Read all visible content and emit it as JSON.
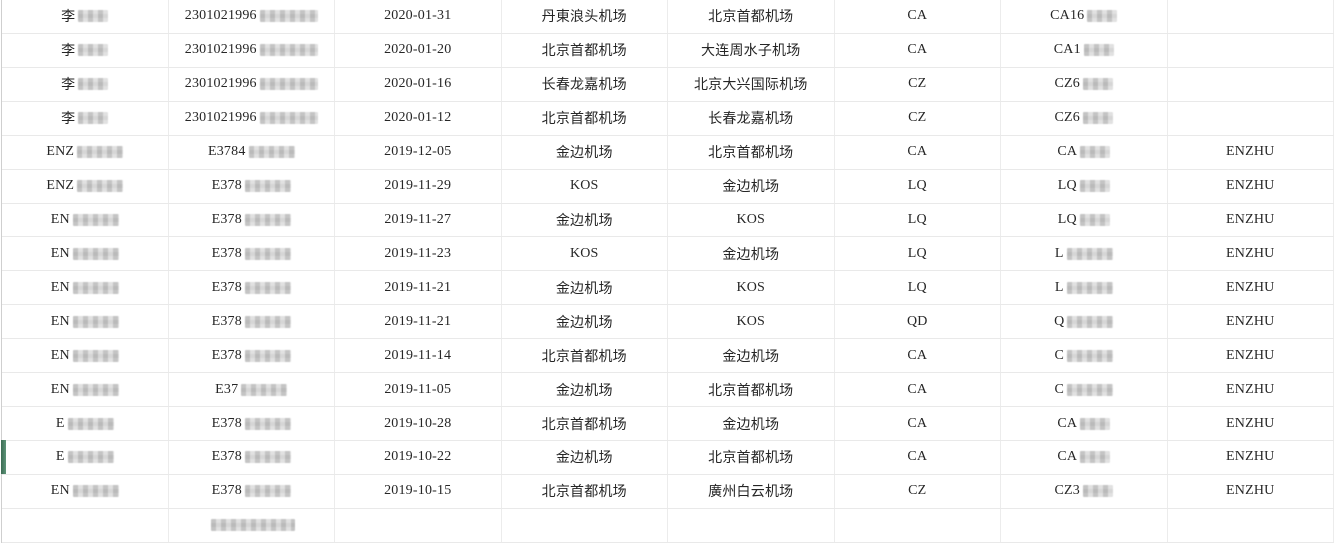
{
  "colors": {
    "row_selection_marker_green": "#4e8a6e",
    "grid_border": "#e9e9e9",
    "text": "#262626",
    "redaction_gray": "#c9c9c9"
  },
  "table": {
    "column_keys": [
      "name",
      "id_number",
      "date",
      "departure",
      "arrival",
      "airline",
      "flight",
      "pinyin"
    ],
    "rows": [
      {
        "name": {
          "text": "李",
          "redact": "sm"
        },
        "id_number": {
          "text": "2301021996",
          "redact": "lg"
        },
        "date": {
          "text": "2020-01-31"
        },
        "departure": {
          "text": "丹東浪头机场"
        },
        "arrival": {
          "text": "北京首都机场"
        },
        "airline": {
          "text": "CA"
        },
        "flight": {
          "text": "CA16",
          "redact": "sm"
        },
        "pinyin": {
          "text": ""
        }
      },
      {
        "name": {
          "text": "李",
          "redact": "sm"
        },
        "id_number": {
          "text": "2301021996",
          "redact": "lg"
        },
        "date": {
          "text": "2020-01-20"
        },
        "departure": {
          "text": "北京首都机场"
        },
        "arrival": {
          "text": "大连周水子机场"
        },
        "airline": {
          "text": "CA"
        },
        "flight": {
          "text": "CA1",
          "redact": "sm"
        },
        "pinyin": {
          "text": ""
        }
      },
      {
        "name": {
          "text": "李",
          "redact": "sm"
        },
        "id_number": {
          "text": "2301021996",
          "redact": "lg"
        },
        "date": {
          "text": "2020-01-16"
        },
        "departure": {
          "text": "长春龙嘉机场"
        },
        "arrival": {
          "text": "北京大兴国际机场"
        },
        "airline": {
          "text": "CZ"
        },
        "flight": {
          "text": "CZ6",
          "redact": "sm"
        },
        "pinyin": {
          "text": ""
        }
      },
      {
        "name": {
          "text": "李",
          "redact": "sm"
        },
        "id_number": {
          "text": "2301021996",
          "redact": "lg"
        },
        "date": {
          "text": "2020-01-12"
        },
        "departure": {
          "text": "北京首都机场"
        },
        "arrival": {
          "text": "长春龙嘉机场"
        },
        "airline": {
          "text": "CZ"
        },
        "flight": {
          "text": "CZ6",
          "redact": "sm"
        },
        "pinyin": {
          "text": ""
        }
      },
      {
        "name": {
          "text": "ENZ",
          "redact": "md"
        },
        "id_number": {
          "text": "E3784",
          "redact": "md"
        },
        "date": {
          "text": "2019-12-05"
        },
        "departure": {
          "text": "金边机场"
        },
        "arrival": {
          "text": "北京首都机场"
        },
        "airline": {
          "text": "CA"
        },
        "flight": {
          "text": "CA",
          "redact": "sm"
        },
        "pinyin": {
          "text": "ENZHU"
        }
      },
      {
        "name": {
          "text": "ENZ",
          "redact": "md"
        },
        "id_number": {
          "text": "E378",
          "redact": "md"
        },
        "date": {
          "text": "2019-11-29"
        },
        "departure": {
          "text": "KOS"
        },
        "arrival": {
          "text": "金边机场"
        },
        "airline": {
          "text": "LQ"
        },
        "flight": {
          "text": "LQ",
          "redact": "sm"
        },
        "pinyin": {
          "text": "ENZHU"
        }
      },
      {
        "name": {
          "text": "EN",
          "redact": "md"
        },
        "id_number": {
          "text": "E378",
          "redact": "md"
        },
        "date": {
          "text": "2019-11-27"
        },
        "departure": {
          "text": "金边机场"
        },
        "arrival": {
          "text": "KOS"
        },
        "airline": {
          "text": "LQ"
        },
        "flight": {
          "text": "LQ",
          "redact": "sm"
        },
        "pinyin": {
          "text": "ENZHU"
        }
      },
      {
        "name": {
          "text": "EN",
          "redact": "md"
        },
        "id_number": {
          "text": "E378",
          "redact": "md"
        },
        "date": {
          "text": "2019-11-23"
        },
        "departure": {
          "text": "KOS"
        },
        "arrival": {
          "text": "金边机场"
        },
        "airline": {
          "text": "LQ"
        },
        "flight": {
          "text": "L",
          "redact": "md"
        },
        "pinyin": {
          "text": "ENZHU"
        }
      },
      {
        "name": {
          "text": "EN",
          "redact": "md"
        },
        "id_number": {
          "text": "E378",
          "redact": "md"
        },
        "date": {
          "text": "2019-11-21"
        },
        "departure": {
          "text": "金边机场"
        },
        "arrival": {
          "text": "KOS"
        },
        "airline": {
          "text": "LQ"
        },
        "flight": {
          "text": "L",
          "redact": "md"
        },
        "pinyin": {
          "text": "ENZHU"
        }
      },
      {
        "name": {
          "text": "EN",
          "redact": "md"
        },
        "id_number": {
          "text": "E378",
          "redact": "md"
        },
        "date": {
          "text": "2019-11-21"
        },
        "departure": {
          "text": "金边机场"
        },
        "arrival": {
          "text": "KOS"
        },
        "airline": {
          "text": "QD"
        },
        "flight": {
          "text": "Q",
          "redact": "md"
        },
        "pinyin": {
          "text": "ENZHU"
        }
      },
      {
        "name": {
          "text": "EN",
          "redact": "md"
        },
        "id_number": {
          "text": "E378",
          "redact": "md"
        },
        "date": {
          "text": "2019-11-14"
        },
        "departure": {
          "text": "北京首都机场"
        },
        "arrival": {
          "text": "金边机场"
        },
        "airline": {
          "text": "CA"
        },
        "flight": {
          "text": "C",
          "redact": "md"
        },
        "pinyin": {
          "text": "ENZHU"
        }
      },
      {
        "name": {
          "text": "EN",
          "redact": "md"
        },
        "id_number": {
          "text": "E37",
          "redact": "md"
        },
        "date": {
          "text": "2019-11-05"
        },
        "departure": {
          "text": "金边机场"
        },
        "arrival": {
          "text": "北京首都机场"
        },
        "airline": {
          "text": "CA"
        },
        "flight": {
          "text": "C",
          "redact": "md"
        },
        "pinyin": {
          "text": "ENZHU"
        }
      },
      {
        "name": {
          "text": "E",
          "redact": "md"
        },
        "id_number": {
          "text": "E378",
          "redact": "md"
        },
        "date": {
          "text": "2019-10-28"
        },
        "departure": {
          "text": "北京首都机场"
        },
        "arrival": {
          "text": "金边机场"
        },
        "airline": {
          "text": "CA"
        },
        "flight": {
          "text": "CA",
          "redact": "sm"
        },
        "pinyin": {
          "text": "ENZHU"
        }
      },
      {
        "name": {
          "text": "E",
          "redact": "md"
        },
        "id_number": {
          "text": "E378",
          "redact": "md"
        },
        "date": {
          "text": "2019-10-22"
        },
        "departure": {
          "text": "金边机场"
        },
        "arrival": {
          "text": "北京首都机场"
        },
        "airline": {
          "text": "CA"
        },
        "flight": {
          "text": "CA",
          "redact": "sm"
        },
        "pinyin": {
          "text": "ENZHU"
        },
        "marker": true
      },
      {
        "name": {
          "text": "EN",
          "redact": "md"
        },
        "id_number": {
          "text": "E378",
          "redact": "md"
        },
        "date": {
          "text": "2019-10-15"
        },
        "departure": {
          "text": "北京首都机场"
        },
        "arrival": {
          "text": "廣州白云机场"
        },
        "airline": {
          "text": "CZ"
        },
        "flight": {
          "text": "CZ3",
          "redact": "sm"
        },
        "pinyin": {
          "text": "ENZHU"
        }
      },
      {
        "name": {
          "text": ""
        },
        "id_number": {
          "text": "",
          "redact": "xl"
        },
        "date": {
          "text": ""
        },
        "departure": {
          "text": ""
        },
        "arrival": {
          "text": ""
        },
        "airline": {
          "text": ""
        },
        "flight": {
          "text": ""
        },
        "pinyin": {
          "text": ""
        },
        "partial": true
      }
    ]
  }
}
